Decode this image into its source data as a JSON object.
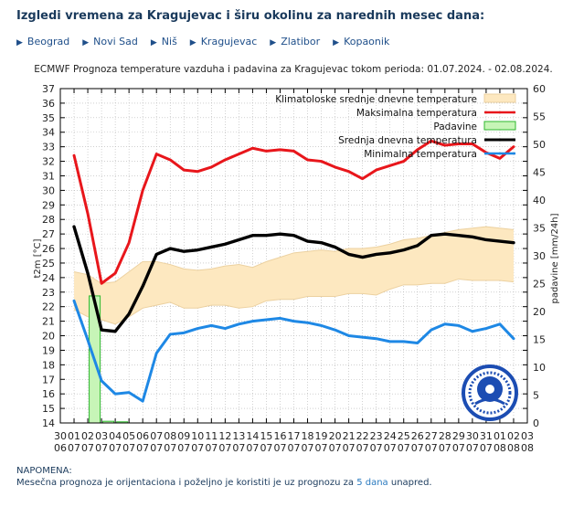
{
  "page": {
    "title": "Izgledi vremena za Kragujevac i širu okolinu za narednih mesec dana:",
    "nav": [
      "Beograd",
      "Novi Sad",
      "Niš",
      "Kragujevac",
      "Zlatibor",
      "Kopaonik"
    ],
    "note_label": "NAPOMENA:",
    "note_before": "Mesečna prognoza je orijentaciona i poželjno je koristiti je uz prognozu za",
    "note_link": "5 dana",
    "note_after": "unapred."
  },
  "chart_data": {
    "type": "line",
    "title": "ECMWF Prognoza temperature  vazduha i padavina za Kragujevac tokom perioda: 01.07.2024. - 02.08.2024.",
    "ylabel": "t2m [°C]",
    "y2label": "padavine [mm/24h]",
    "ylim": [
      14,
      37
    ],
    "y2lim": [
      0,
      60
    ],
    "yticks": [
      14,
      15,
      16,
      17,
      18,
      19,
      20,
      21,
      22,
      23,
      24,
      25,
      26,
      27,
      28,
      29,
      30,
      31,
      32,
      33,
      34,
      35,
      36,
      37
    ],
    "y2ticks": [
      0,
      5,
      10,
      15,
      20,
      25,
      30,
      35,
      40,
      45,
      50,
      55,
      60
    ],
    "x": [
      0,
      1,
      2,
      3,
      4,
      5,
      6,
      7,
      8,
      9,
      10,
      11,
      12,
      13,
      14,
      15,
      16,
      17,
      18,
      19,
      20,
      21,
      22,
      23,
      24,
      25,
      26,
      27,
      28,
      29,
      30,
      31,
      32,
      33,
      34
    ],
    "xtick_day": [
      "30",
      "01",
      "02",
      "03",
      "04",
      "05",
      "06",
      "07",
      "08",
      "09",
      "10",
      "11",
      "12",
      "13",
      "14",
      "15",
      "16",
      "17",
      "18",
      "19",
      "20",
      "21",
      "22",
      "23",
      "24",
      "25",
      "26",
      "27",
      "28",
      "29",
      "30",
      "31",
      "01",
      "02",
      "03"
    ],
    "xtick_month": [
      "06",
      "07",
      "07",
      "07",
      "07",
      "07",
      "07",
      "07",
      "07",
      "07",
      "07",
      "07",
      "07",
      "07",
      "07",
      "07",
      "07",
      "07",
      "07",
      "07",
      "07",
      "07",
      "07",
      "07",
      "07",
      "07",
      "07",
      "07",
      "07",
      "07",
      "07",
      "07",
      "08",
      "08",
      "08"
    ],
    "legend": [
      "Klimatoloske srednje dnevne temperature",
      "Maksimalna temperatura",
      "Padavine",
      "Srednja dnevna temperatura",
      "Minimalna temperatura"
    ],
    "colors": {
      "clim_fill": "#fde8c0",
      "clim_edge": "#ecd1a0",
      "max": "#e8161b",
      "mean": "#000000",
      "min": "#1e88e5",
      "precip_fill": "#c7f5b7",
      "precip_edge": "#2fb82f",
      "grid": "#b4b4b4"
    },
    "series": [
      {
        "name": "Maksimalna temperatura",
        "x": [
          1,
          2,
          3,
          4,
          5,
          6,
          7,
          8,
          9,
          10,
          11,
          12,
          13,
          14,
          15,
          16,
          17,
          18,
          19,
          20,
          21,
          22,
          23,
          24,
          25,
          26,
          27,
          28,
          29,
          30,
          31,
          32,
          33
        ],
        "values": [
          32.4,
          28.4,
          23.6,
          24.3,
          26.4,
          30.0,
          32.5,
          32.1,
          31.4,
          31.3,
          31.6,
          32.1,
          32.5,
          32.9,
          32.7,
          32.8,
          32.7,
          32.1,
          32.0,
          31.6,
          31.3,
          30.8,
          31.4,
          31.7,
          32.0,
          32.8,
          33.4,
          33.1,
          33.2,
          33.2,
          32.6,
          32.2,
          33.0
        ]
      },
      {
        "name": "Srednja dnevna temperatura",
        "x": [
          1,
          2,
          3,
          4,
          5,
          6,
          7,
          8,
          9,
          10,
          11,
          12,
          13,
          14,
          15,
          16,
          17,
          18,
          19,
          20,
          21,
          22,
          23,
          24,
          25,
          26,
          27,
          28,
          29,
          30,
          31,
          32,
          33
        ],
        "values": [
          27.5,
          24.3,
          20.4,
          20.3,
          21.5,
          23.4,
          25.6,
          26.0,
          25.8,
          25.9,
          26.1,
          26.3,
          26.6,
          26.9,
          26.9,
          27.0,
          26.9,
          26.5,
          26.4,
          26.1,
          25.6,
          25.4,
          25.6,
          25.7,
          25.9,
          26.2,
          26.9,
          27.0,
          26.9,
          26.8,
          26.6,
          26.5,
          26.4
        ]
      },
      {
        "name": "Minimalna temperatura",
        "x": [
          1,
          2,
          3,
          4,
          5,
          6,
          7,
          8,
          9,
          10,
          11,
          12,
          13,
          14,
          15,
          16,
          17,
          18,
          19,
          20,
          21,
          22,
          23,
          24,
          25,
          26,
          27,
          28,
          29,
          30,
          31,
          32,
          33
        ],
        "values": [
          22.4,
          19.7,
          16.9,
          16.0,
          16.1,
          15.5,
          18.8,
          20.1,
          20.2,
          20.5,
          20.7,
          20.5,
          20.8,
          21.0,
          21.1,
          21.2,
          21.0,
          20.9,
          20.7,
          20.4,
          20.0,
          19.9,
          19.8,
          19.6,
          19.6,
          19.5,
          20.4,
          20.8,
          20.7,
          20.3,
          20.5,
          20.8,
          19.8
        ]
      },
      {
        "name": "Klimatoloske srednje dnevne temperature",
        "x": [
          1,
          2,
          3,
          4,
          5,
          6,
          7,
          8,
          9,
          10,
          11,
          12,
          13,
          14,
          15,
          16,
          17,
          18,
          19,
          20,
          21,
          22,
          23,
          24,
          25,
          26,
          27,
          28,
          29,
          30,
          31,
          32,
          33
        ],
        "lower": [
          21.8,
          21.3,
          21.1,
          20.8,
          21.3,
          21.9,
          22.1,
          22.3,
          21.9,
          21.9,
          22.1,
          22.1,
          21.9,
          22.0,
          22.4,
          22.5,
          22.5,
          22.7,
          22.7,
          22.7,
          22.9,
          22.9,
          22.8,
          23.2,
          23.5,
          23.5,
          23.6,
          23.6,
          23.9,
          23.8,
          23.8,
          23.8,
          23.7
        ],
        "upper": [
          24.4,
          24.2,
          23.6,
          23.7,
          24.4,
          25.1,
          25.1,
          24.9,
          24.6,
          24.5,
          24.6,
          24.8,
          24.9,
          24.7,
          25.1,
          25.4,
          25.7,
          25.8,
          25.9,
          25.8,
          26.0,
          26.0,
          26.1,
          26.3,
          26.6,
          26.7,
          26.9,
          27.1,
          27.3,
          27.4,
          27.5,
          27.4,
          27.3
        ]
      },
      {
        "name": "Padavine",
        "x": [
          1,
          2,
          3,
          4,
          5,
          6,
          7,
          8,
          9,
          10,
          11,
          12,
          13,
          14,
          15,
          16,
          17,
          18,
          19,
          20,
          21,
          22,
          23,
          24,
          25,
          26,
          27,
          28,
          29,
          30,
          31,
          32,
          33
        ],
        "values": [
          0,
          22.8,
          0.3,
          0.2,
          0,
          0,
          0,
          0,
          0,
          0,
          0,
          0,
          0,
          0,
          0,
          0,
          0,
          0,
          0,
          0,
          0,
          0,
          0,
          0,
          0,
          0,
          0,
          0,
          0,
          0,
          0,
          0,
          0
        ]
      }
    ]
  }
}
